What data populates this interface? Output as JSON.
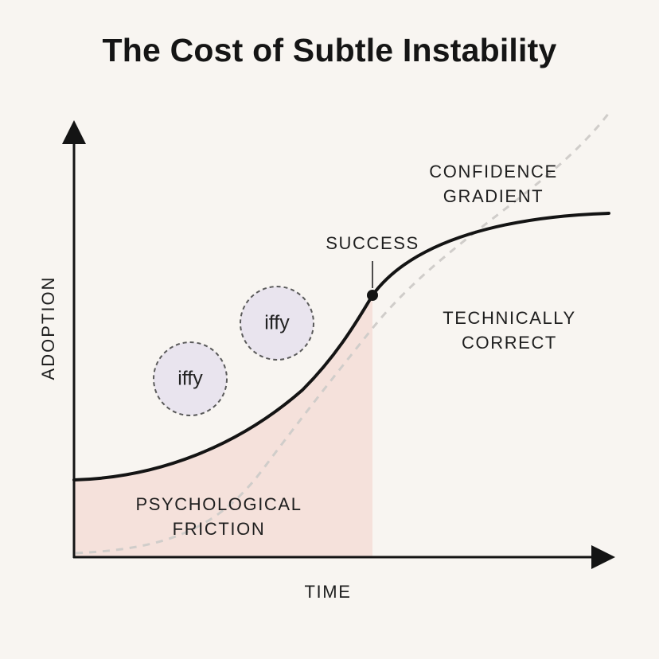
{
  "title": "The Cost of Subtle Instability",
  "axes": {
    "x_label": "TIME",
    "y_label": "ADOPTION"
  },
  "labels": {
    "confidence_line1": "CONFIDENCE",
    "confidence_line2": "GRADIENT",
    "success": "SUCCESS",
    "technically_line1": "TECHNICALLY",
    "technically_line2": "CORRECT",
    "friction_line1": "PSYCHOLOGICAL",
    "friction_line2": "FRICTION"
  },
  "bubbles": [
    {
      "text": "iffy"
    },
    {
      "text": "iffy"
    }
  ],
  "colors": {
    "background": "#f8f5f1",
    "curve": "#141414",
    "friction_fill": "#f5e1db",
    "dashed_curve": "#d0cdca",
    "bubble_fill": "#e9e4ee",
    "bubble_border": "#5a5a5a"
  }
}
